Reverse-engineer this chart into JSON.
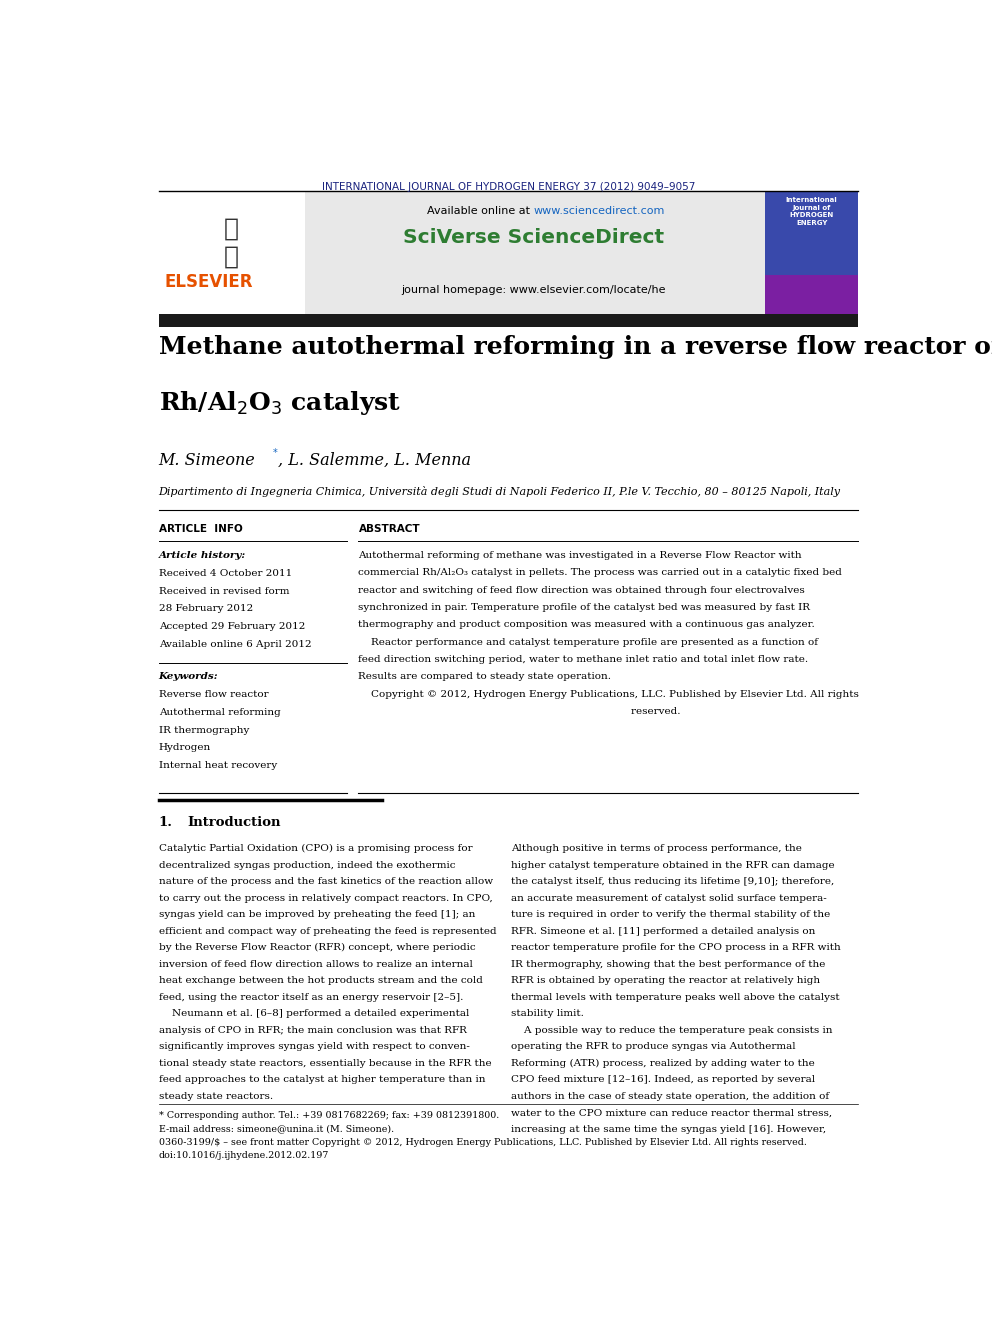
{
  "page_width": 9.92,
  "page_height": 13.23,
  "background_color": "#ffffff",
  "header_journal": "INTERNATIONAL JOURNAL OF HYDROGEN ENERGY 37 (2012) 9049–9057",
  "header_color": "#1a237e",
  "available_online": "Available online at www.sciencedirect.com",
  "sciverse_text": "SciVerse ScienceDirect",
  "sciverse_color": "#2e7d32",
  "journal_homepage": "journal homepage: www.elsevier.com/locate/he",
  "dark_bar_color": "#1a1a1a",
  "title_line1": "Methane autothermal reforming in a reverse flow reactor on",
  "title_line2": "Rh/Al$_2$O$_3$ catalyst",
  "authors": "M. Simeone*, L. Salemme, L. Menna",
  "affiliation": "Dipartimento di Ingegneria Chimica, Università degli Studi di Napoli Federico II, P.le V. Tecchio, 80 – 80125 Napoli, Italy",
  "article_info_label": "ARTICLE  INFO",
  "abstract_label": "ABSTRACT",
  "article_history_label": "Article history:",
  "received1": "Received 4 October 2011",
  "received_revised": "Received in revised form",
  "revised_date": "28 February 2012",
  "accepted": "Accepted 29 February 2012",
  "available_online2": "Available online 6 April 2012",
  "keywords_label": "Keywords:",
  "keyword1": "Reverse flow reactor",
  "keyword2": "Autothermal reforming",
  "keyword3": "IR thermography",
  "keyword4": "Hydrogen",
  "keyword5": "Internal heat recovery",
  "section1_num": "1.",
  "section1_title": "Introduction",
  "footer_star": "* Corresponding author. Tel.: +39 0817682269; fax: +39 0812391800.",
  "footer_email": "E-mail address: simeone@unina.it (M. Simeone).",
  "footer_issn": "0360-3199/$ – see front matter Copyright © 2012, Hydrogen Energy Publications, LLC. Published by Elsevier Ltd. All rights reserved.",
  "footer_doi": "doi:10.1016/j.ijhydene.2012.02.197",
  "elsevier_color": "#e65100",
  "gray_banner_color": "#e8e8e8",
  "link_color": "#1565c0",
  "abstract_lines": [
    "Autothermal reforming of methane was investigated in a Reverse Flow Reactor with",
    "commercial Rh/Al₂O₃ catalyst in pellets. The process was carried out in a catalytic fixed bed",
    "reactor and switching of feed flow direction was obtained through four electrovalves",
    "synchronized in pair. Temperature profile of the catalyst bed was measured by fast IR",
    "thermography and product composition was measured with a continuous gas analyzer.",
    "    Reactor performance and catalyst temperature profile are presented as a function of",
    "feed direction switching period, water to methane inlet ratio and total inlet flow rate.",
    "Results are compared to steady state operation.",
    "    Copyright © 2012, Hydrogen Energy Publications, LLC. Published by Elsevier Ltd. All rights",
    "                                                                                    reserved."
  ],
  "intro_text_left": [
    "Catalytic Partial Oxidation (CPO) is a promising process for",
    "decentralized syngas production, indeed the exothermic",
    "nature of the process and the fast kinetics of the reaction allow",
    "to carry out the process in relatively compact reactors. In CPO,",
    "syngas yield can be improved by preheating the feed [1]; an",
    "efficient and compact way of preheating the feed is represented",
    "by the Reverse Flow Reactor (RFR) concept, where periodic",
    "inversion of feed flow direction allows to realize an internal",
    "heat exchange between the hot products stream and the cold",
    "feed, using the reactor itself as an energy reservoir [2–5].",
    "    Neumann et al. [6–8] performed a detailed experimental",
    "analysis of CPO in RFR; the main conclusion was that RFR",
    "significantly improves syngas yield with respect to conven-",
    "tional steady state reactors, essentially because in the RFR the",
    "feed approaches to the catalyst at higher temperature than in",
    "steady state reactors."
  ],
  "intro_text_right": [
    "Although positive in terms of process performance, the",
    "higher catalyst temperature obtained in the RFR can damage",
    "the catalyst itself, thus reducing its lifetime [9,10]; therefore,",
    "an accurate measurement of catalyst solid surface tempera-",
    "ture is required in order to verify the thermal stability of the",
    "RFR. Simeone et al. [11] performed a detailed analysis on",
    "reactor temperature profile for the CPO process in a RFR with",
    "IR thermography, showing that the best performance of the",
    "RFR is obtained by operating the reactor at relatively high",
    "thermal levels with temperature peaks well above the catalyst",
    "stability limit.",
    "    A possible way to reduce the temperature peak consists in",
    "operating the RFR to produce syngas via Autothermal",
    "Reforming (ATR) process, realized by adding water to the",
    "CPO feed mixture [12–16]. Indeed, as reported by several",
    "authors in the case of steady state operation, the addition of",
    "water to the CPO mixture can reduce reactor thermal stress,",
    "increasing at the same time the syngas yield [16]. However,"
  ]
}
